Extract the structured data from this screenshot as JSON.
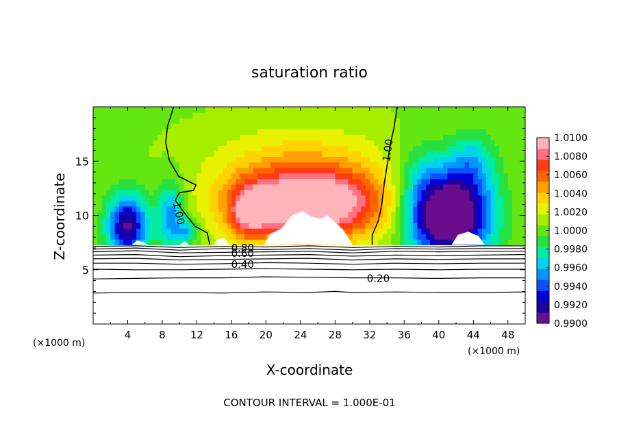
{
  "chart_data": {
    "type": "heatmap",
    "title": "saturation ratio",
    "xlabel": "X-coordinate",
    "ylabel": "Z-coordinate",
    "x_unit_label_left": "(×1000 m)",
    "x_unit_label_right": "(×1000 m)",
    "footer": "CONTOUR INTERVAL = 1.000E-01",
    "xlim": [
      0,
      50
    ],
    "ylim": [
      0,
      20
    ],
    "x_ticks": [
      4,
      8,
      12,
      16,
      20,
      24,
      28,
      32,
      36,
      40,
      44,
      48
    ],
    "x_tick_labels": [
      "4",
      "8",
      "12",
      "16",
      "20",
      "24",
      "28",
      "32",
      "36",
      "40",
      "44",
      "48"
    ],
    "y_ticks": [
      5,
      10,
      15
    ],
    "y_tick_labels": [
      "5",
      "10",
      "15"
    ],
    "colorbar": {
      "min": 0.99,
      "max": 1.01,
      "tick_values": [
        0.99,
        0.992,
        0.994,
        0.996,
        0.998,
        1.0,
        1.002,
        1.004,
        1.006,
        1.008,
        1.01
      ],
      "tick_labels": [
        "0.9900",
        "0.9920",
        "0.9940",
        "0.9960",
        "0.9980",
        "1.0000",
        "1.0020",
        "1.0040",
        "1.0060",
        "1.0080",
        "1.0100"
      ],
      "colors": [
        "#6a0d8c",
        "#1e00a0",
        "#0000dc",
        "#0a50ff",
        "#0096ff",
        "#00d2f0",
        "#00eca0",
        "#28e040",
        "#64e610",
        "#a8ee00",
        "#e8f200",
        "#ffd200",
        "#ffa000",
        "#ff6400",
        "#ff3c14",
        "#ff7080",
        "#ffb4bc"
      ]
    },
    "contour_labels": [
      {
        "text": "1.00",
        "x": 9.9,
        "y": 10.2
      },
      {
        "text": "1.00",
        "x": 34.1,
        "y": 16.0
      },
      {
        "text": "0.80",
        "x": 17.3,
        "y": 7.0
      },
      {
        "text": "0.60",
        "x": 17.3,
        "y": 6.5
      },
      {
        "text": "0.40",
        "x": 17.3,
        "y": 5.5
      },
      {
        "text": "0.20",
        "x": 33.0,
        "y": 4.2
      }
    ],
    "contours": [
      {
        "level": 1.0,
        "points": [
          [
            13.5,
            7.3
          ],
          [
            13.2,
            8.4
          ],
          [
            11.8,
            9.0
          ],
          [
            10.5,
            10.3
          ],
          [
            9.5,
            11.4
          ],
          [
            10.0,
            12.1
          ],
          [
            11.6,
            12.3
          ],
          [
            11.9,
            12.8
          ],
          [
            9.9,
            13.6
          ],
          [
            8.8,
            15.1
          ],
          [
            8.4,
            16.7
          ],
          [
            8.6,
            18.2
          ],
          [
            9.0,
            19.2
          ],
          [
            9.3,
            20.0
          ]
        ]
      },
      {
        "level": 1.0,
        "points": [
          [
            32.3,
            7.3
          ],
          [
            32.3,
            8.2
          ],
          [
            33.0,
            9.5
          ],
          [
            33.4,
            11.0
          ],
          [
            33.7,
            13.0
          ],
          [
            34.1,
            15.0
          ],
          [
            34.4,
            16.6
          ],
          [
            34.8,
            18.0
          ],
          [
            35.2,
            20.0
          ]
        ]
      },
      {
        "level": 0.9,
        "points": [
          [
            0,
            7.15
          ],
          [
            5,
            7.2
          ],
          [
            10,
            7.05
          ],
          [
            15,
            7.15
          ],
          [
            20,
            7.1
          ],
          [
            25,
            7.2
          ],
          [
            30,
            7.05
          ],
          [
            35,
            7.15
          ],
          [
            40,
            7.1
          ],
          [
            45,
            7.2
          ],
          [
            50,
            7.2
          ]
        ]
      },
      {
        "level": 0.8,
        "points": [
          [
            0,
            6.9
          ],
          [
            5,
            7.0
          ],
          [
            10,
            6.8
          ],
          [
            15,
            6.95
          ],
          [
            20,
            6.85
          ],
          [
            25,
            6.95
          ],
          [
            30,
            6.8
          ],
          [
            35,
            6.95
          ],
          [
            40,
            6.9
          ],
          [
            45,
            6.95
          ],
          [
            50,
            6.95
          ]
        ]
      },
      {
        "level": 0.7,
        "points": [
          [
            0,
            6.65
          ],
          [
            5,
            6.75
          ],
          [
            10,
            6.55
          ],
          [
            15,
            6.6
          ],
          [
            20,
            6.65
          ],
          [
            25,
            6.7
          ],
          [
            30,
            6.55
          ],
          [
            35,
            6.7
          ],
          [
            40,
            6.65
          ],
          [
            45,
            6.7
          ],
          [
            50,
            6.7
          ]
        ]
      },
      {
        "level": 0.6,
        "points": [
          [
            0,
            6.35
          ],
          [
            5,
            6.4
          ],
          [
            10,
            6.2
          ],
          [
            15,
            6.3
          ],
          [
            20,
            6.35
          ],
          [
            25,
            6.4
          ],
          [
            30,
            6.25
          ],
          [
            35,
            6.35
          ],
          [
            40,
            6.3
          ],
          [
            45,
            6.35
          ],
          [
            50,
            6.4
          ]
        ]
      },
      {
        "level": 0.5,
        "points": [
          [
            0,
            6.0
          ],
          [
            5,
            6.05
          ],
          [
            10,
            5.9
          ],
          [
            15,
            5.95
          ],
          [
            20,
            6.0
          ],
          [
            25,
            6.05
          ],
          [
            30,
            5.9
          ],
          [
            35,
            6.0
          ],
          [
            40,
            5.95
          ],
          [
            45,
            6.0
          ],
          [
            50,
            6.0
          ]
        ]
      },
      {
        "level": 0.4,
        "points": [
          [
            0,
            5.6
          ],
          [
            5,
            5.6
          ],
          [
            10,
            5.5
          ],
          [
            15,
            5.55
          ],
          [
            20,
            5.65
          ],
          [
            25,
            5.6
          ],
          [
            30,
            5.5
          ],
          [
            35,
            5.6
          ],
          [
            40,
            5.55
          ],
          [
            45,
            5.6
          ],
          [
            50,
            5.6
          ]
        ]
      },
      {
        "level": 0.3,
        "points": [
          [
            0,
            5.05
          ],
          [
            5,
            5.0
          ],
          [
            10,
            5.0
          ],
          [
            15,
            5.05
          ],
          [
            20,
            5.1
          ],
          [
            25,
            5.05
          ],
          [
            30,
            5.0
          ],
          [
            35,
            5.05
          ],
          [
            40,
            5.0
          ],
          [
            45,
            5.05
          ],
          [
            50,
            5.05
          ]
        ]
      },
      {
        "level": 0.2,
        "points": [
          [
            0,
            4.15
          ],
          [
            5,
            4.2
          ],
          [
            10,
            4.25
          ],
          [
            15,
            4.25
          ],
          [
            20,
            4.35
          ],
          [
            25,
            4.3
          ],
          [
            30,
            4.25
          ],
          [
            35,
            4.25
          ],
          [
            40,
            4.2
          ],
          [
            45,
            4.25
          ],
          [
            50,
            4.25
          ]
        ]
      },
      {
        "level": 0.1,
        "points": [
          [
            0,
            2.85
          ],
          [
            5,
            2.9
          ],
          [
            10,
            2.9
          ],
          [
            15,
            2.85
          ],
          [
            20,
            2.95
          ],
          [
            25,
            2.9
          ],
          [
            28,
            3.0
          ],
          [
            30,
            2.9
          ],
          [
            35,
            2.95
          ],
          [
            40,
            2.9
          ],
          [
            45,
            2.9
          ],
          [
            50,
            2.95
          ]
        ]
      }
    ],
    "field_features": [
      {
        "center": [
          25.0,
          11.0
        ],
        "sx": 8.5,
        "sy": 3.2,
        "amp": 0.0105
      },
      {
        "center": [
          18.0,
          10.2
        ],
        "sx": 2.2,
        "sy": 2.4,
        "amp": 0.005
      },
      {
        "center": [
          24.0,
          14.0
        ],
        "sx": 11.0,
        "sy": 5.0,
        "amp": 0.003
      },
      {
        "center": [
          4.0,
          9.0
        ],
        "sx": 2.3,
        "sy": 3.0,
        "amp": -0.0095
      },
      {
        "center": [
          9.0,
          10.0
        ],
        "sx": 1.6,
        "sy": 3.2,
        "amp": -0.0055
      },
      {
        "center": [
          11.0,
          8.6
        ],
        "sx": 1.2,
        "sy": 1.2,
        "amp": -0.004
      },
      {
        "center": [
          41.5,
          10.0
        ],
        "sx": 4.5,
        "sy": 4.2,
        "amp": -0.0125
      },
      {
        "center": [
          38.0,
          12.0
        ],
        "sx": 3.0,
        "sy": 4.5,
        "amp": -0.003
      },
      {
        "center": [
          44.0,
          15.0
        ],
        "sx": 2.5,
        "sy": 3.0,
        "amp": -0.003
      }
    ],
    "background_value": 1.0004,
    "cloud_top_level": 7.3,
    "white_regions": [
      [
        [
          19.8,
          7.3
        ],
        [
          20.5,
          8.3
        ],
        [
          21.8,
          8.8
        ],
        [
          23.0,
          10.0
        ],
        [
          24.3,
          10.4
        ],
        [
          25.2,
          9.9
        ],
        [
          26.3,
          9.7
        ],
        [
          27.1,
          10.0
        ],
        [
          28.1,
          9.3
        ],
        [
          28.9,
          8.7
        ],
        [
          29.5,
          8.0
        ],
        [
          30.0,
          7.3
        ]
      ],
      [
        [
          14.0,
          7.3
        ],
        [
          14.3,
          7.8
        ],
        [
          15.2,
          7.9
        ],
        [
          15.8,
          7.3
        ]
      ],
      [
        [
          41.5,
          7.3
        ],
        [
          42.2,
          8.2
        ],
        [
          43.4,
          8.5
        ],
        [
          44.6,
          8.1
        ],
        [
          45.3,
          7.3
        ]
      ],
      [
        [
          4.5,
          7.3
        ],
        [
          5.1,
          7.7
        ],
        [
          5.9,
          7.5
        ],
        [
          6.3,
          7.3
        ]
      ],
      [
        [
          10.0,
          7.3
        ],
        [
          10.6,
          7.6
        ],
        [
          11.1,
          7.3
        ]
      ]
    ]
  }
}
